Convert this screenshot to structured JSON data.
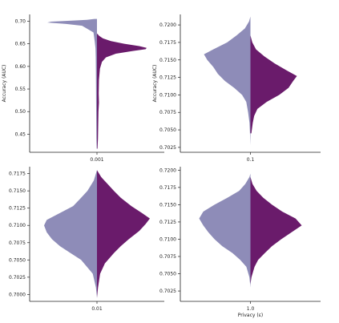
{
  "chart_data": [
    {
      "type": "split-violin",
      "ylabel": "Accuracy (AUC)",
      "xlabel": "",
      "category": "0.001",
      "ylim": [
        0.41,
        0.715
      ],
      "yticks": [
        "0.45",
        "0.50",
        "0.55",
        "0.60",
        "0.65",
        "0.70"
      ],
      "colors": {
        "left": "#8e8cb8",
        "right": "#6a1b6b"
      },
      "left_density": [
        [
          0.418,
          0.006
        ],
        [
          0.44,
          0.012
        ],
        [
          0.47,
          0.014
        ],
        [
          0.5,
          0.016
        ],
        [
          0.53,
          0.018
        ],
        [
          0.56,
          0.02
        ],
        [
          0.59,
          0.022
        ],
        [
          0.62,
          0.025
        ],
        [
          0.64,
          0.03
        ],
        [
          0.655,
          0.045
        ],
        [
          0.675,
          0.07
        ],
        [
          0.69,
          0.3
        ],
        [
          0.694,
          0.62
        ],
        [
          0.697,
          1.0
        ],
        [
          0.699,
          0.92
        ],
        [
          0.701,
          0.55
        ],
        [
          0.703,
          0.2
        ],
        [
          0.705,
          0.05
        ]
      ],
      "right_density": [
        [
          0.418,
          0.01
        ],
        [
          0.44,
          0.02
        ],
        [
          0.47,
          0.025
        ],
        [
          0.5,
          0.03
        ],
        [
          0.52,
          0.04
        ],
        [
          0.54,
          0.035
        ],
        [
          0.57,
          0.04
        ],
        [
          0.595,
          0.06
        ],
        [
          0.61,
          0.1
        ],
        [
          0.62,
          0.18
        ],
        [
          0.628,
          0.38
        ],
        [
          0.634,
          0.72
        ],
        [
          0.638,
          0.98
        ],
        [
          0.641,
          1.0
        ],
        [
          0.645,
          0.85
        ],
        [
          0.65,
          0.55
        ],
        [
          0.656,
          0.28
        ],
        [
          0.662,
          0.12
        ],
        [
          0.668,
          0.04
        ],
        [
          0.672,
          0.01
        ]
      ]
    },
    {
      "type": "split-violin",
      "ylabel": "Accuracy (AUC)",
      "xlabel": "",
      "category": "0.1",
      "ylim": [
        0.7018,
        0.7215
      ],
      "yticks": [
        "0.7025",
        "0.7050",
        "0.7075",
        "0.7100",
        "0.7125",
        "0.7150",
        "0.7175",
        "0.7200"
      ],
      "colors": {
        "left": "#8e8cb8",
        "right": "#6a1b6b"
      },
      "left_density": [
        [
          0.7028,
          0.0
        ],
        [
          0.7045,
          0.01
        ],
        [
          0.706,
          0.02
        ],
        [
          0.7075,
          0.05
        ],
        [
          0.709,
          0.09
        ],
        [
          0.71,
          0.18
        ],
        [
          0.711,
          0.35
        ],
        [
          0.712,
          0.55
        ],
        [
          0.713,
          0.7
        ],
        [
          0.714,
          0.8
        ],
        [
          0.715,
          0.93
        ],
        [
          0.7158,
          1.0
        ],
        [
          0.7165,
          0.8
        ],
        [
          0.7175,
          0.5
        ],
        [
          0.7185,
          0.3
        ],
        [
          0.7195,
          0.12
        ],
        [
          0.7205,
          0.03
        ],
        [
          0.7212,
          0.0
        ]
      ],
      "right_density": [
        [
          0.7045,
          0.02
        ],
        [
          0.706,
          0.05
        ],
        [
          0.707,
          0.08
        ],
        [
          0.708,
          0.15
        ],
        [
          0.709,
          0.35
        ],
        [
          0.71,
          0.62
        ],
        [
          0.711,
          0.82
        ],
        [
          0.712,
          0.92
        ],
        [
          0.7127,
          1.0
        ],
        [
          0.7135,
          0.78
        ],
        [
          0.7145,
          0.52
        ],
        [
          0.7155,
          0.3
        ],
        [
          0.7165,
          0.12
        ],
        [
          0.7175,
          0.04
        ],
        [
          0.7185,
          0.0
        ]
      ]
    },
    {
      "type": "split-violin",
      "ylabel": "",
      "xlabel": "",
      "category": "0.01",
      "ylim": [
        0.699,
        0.7185
      ],
      "yticks": [
        "0.7000",
        "0.7025",
        "0.7050",
        "0.7075",
        "0.7100",
        "0.7125",
        "0.7150",
        "0.7175"
      ],
      "colors": {
        "left": "#8e8cb8",
        "right": "#6a1b6b"
      },
      "left_density": [
        [
          0.6995,
          0.0
        ],
        [
          0.701,
          0.02
        ],
        [
          0.703,
          0.08
        ],
        [
          0.705,
          0.3
        ],
        [
          0.706,
          0.5
        ],
        [
          0.707,
          0.7
        ],
        [
          0.708,
          0.85
        ],
        [
          0.709,
          0.95
        ],
        [
          0.71,
          1.0
        ],
        [
          0.7108,
          0.95
        ],
        [
          0.7118,
          0.7
        ],
        [
          0.7128,
          0.45
        ],
        [
          0.714,
          0.3
        ],
        [
          0.715,
          0.18
        ],
        [
          0.7165,
          0.06
        ],
        [
          0.718,
          0.0
        ]
      ],
      "right_density": [
        [
          0.6995,
          0.0
        ],
        [
          0.701,
          0.02
        ],
        [
          0.703,
          0.06
        ],
        [
          0.7045,
          0.15
        ],
        [
          0.706,
          0.32
        ],
        [
          0.707,
          0.45
        ],
        [
          0.708,
          0.6
        ],
        [
          0.7092,
          0.8
        ],
        [
          0.7102,
          0.92
        ],
        [
          0.711,
          1.0
        ],
        [
          0.7118,
          0.85
        ],
        [
          0.7128,
          0.65
        ],
        [
          0.714,
          0.45
        ],
        [
          0.715,
          0.32
        ],
        [
          0.716,
          0.2
        ],
        [
          0.717,
          0.08
        ],
        [
          0.718,
          0.0
        ]
      ]
    },
    {
      "type": "split-violin",
      "ylabel": "",
      "xlabel": "Privacy (ε)",
      "category": "1.0",
      "ylim": [
        0.701,
        0.7205
      ],
      "yticks": [
        "0.7025",
        "0.7050",
        "0.7075",
        "0.7100",
        "0.7125",
        "0.7150",
        "0.7175",
        "0.7200"
      ],
      "colors": {
        "left": "#8e8cb8",
        "right": "#6a1b6b"
      },
      "left_density": [
        [
          0.703,
          0.0
        ],
        [
          0.7045,
          0.02
        ],
        [
          0.706,
          0.08
        ],
        [
          0.707,
          0.2
        ],
        [
          0.708,
          0.35
        ],
        [
          0.709,
          0.55
        ],
        [
          0.71,
          0.7
        ],
        [
          0.711,
          0.82
        ],
        [
          0.712,
          0.92
        ],
        [
          0.713,
          1.0
        ],
        [
          0.714,
          0.92
        ],
        [
          0.715,
          0.7
        ],
        [
          0.716,
          0.45
        ],
        [
          0.717,
          0.22
        ],
        [
          0.718,
          0.1
        ],
        [
          0.719,
          0.02
        ],
        [
          0.7195,
          0.0
        ]
      ],
      "right_density": [
        [
          0.7035,
          0.0
        ],
        [
          0.7045,
          0.02
        ],
        [
          0.706,
          0.08
        ],
        [
          0.707,
          0.15
        ],
        [
          0.708,
          0.28
        ],
        [
          0.709,
          0.42
        ],
        [
          0.71,
          0.6
        ],
        [
          0.711,
          0.8
        ],
        [
          0.712,
          1.0
        ],
        [
          0.713,
          0.88
        ],
        [
          0.714,
          0.62
        ],
        [
          0.715,
          0.42
        ],
        [
          0.716,
          0.25
        ],
        [
          0.717,
          0.12
        ],
        [
          0.718,
          0.04
        ],
        [
          0.719,
          0.0
        ]
      ]
    }
  ]
}
